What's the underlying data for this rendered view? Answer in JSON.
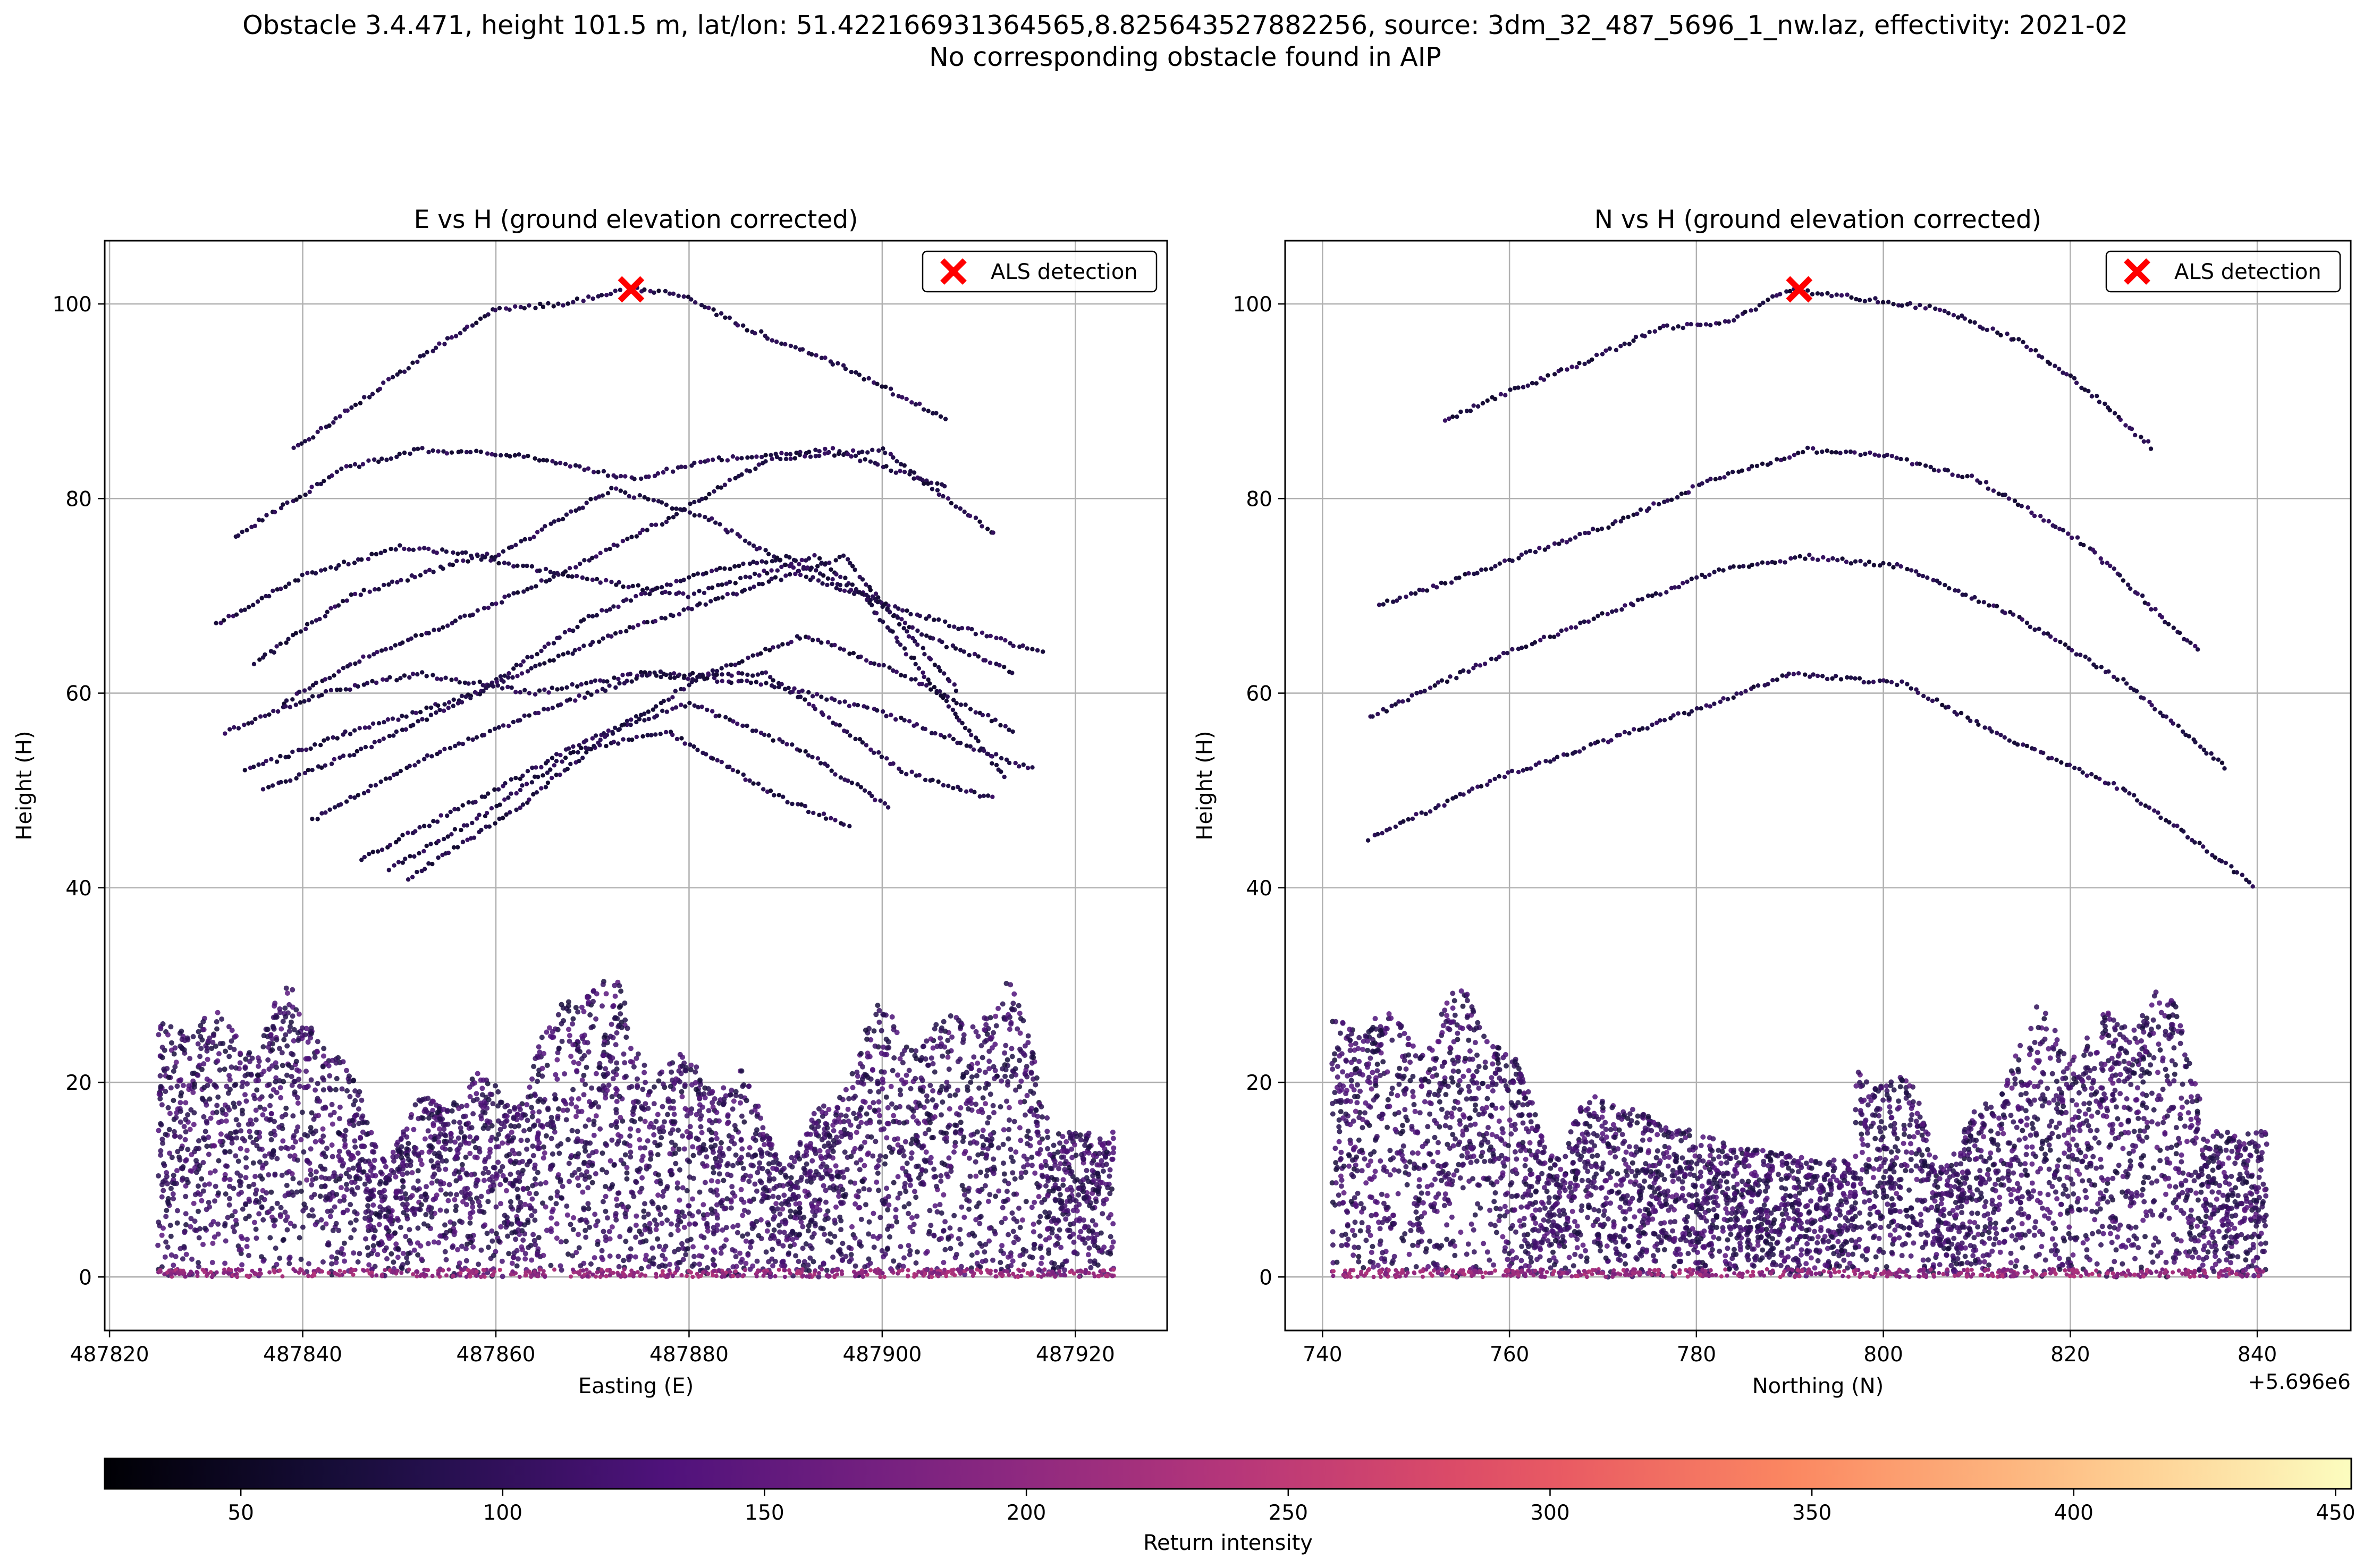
{
  "figure": {
    "title_line1": "Obstacle 3.4.471, height 101.5 m, lat/lon: 51.422166931364565,8.825643527882256, source: 3dm_32_487_5696_1_nw.laz, effectivity: 2021-02",
    "title_line2": "No corresponding obstacle found in AIP"
  },
  "chart_data": [
    {
      "type": "scatter",
      "title": "E vs H (ground elevation corrected)",
      "xlabel": "Easting (E)",
      "ylabel": "Height (H)",
      "xlim": [
        487819.5,
        487929.5
      ],
      "ylim": [
        -5.5,
        106.5
      ],
      "xticks": [
        487820,
        487840,
        487860,
        487880,
        487900,
        487920
      ],
      "xtick_labels": [
        "487820",
        "487840",
        "487860",
        "487880",
        "487900",
        "487920"
      ],
      "yticks": [
        0,
        20,
        40,
        60,
        80,
        100
      ],
      "ytick_labels": [
        "0",
        "20",
        "40",
        "60",
        "80",
        "100"
      ],
      "x_offset_label": "",
      "grid": true,
      "legend": {
        "position": "top-right",
        "label": "ALS detection"
      },
      "detection": {
        "x": 487874,
        "y": 101.5,
        "marker": "x",
        "color": "#ff0000"
      },
      "ground_band": {
        "x_range": [
          487825,
          487924
        ],
        "height_range": [
          0,
          32
        ]
      },
      "point_lines": [
        {
          "x": [
            487833,
            487844,
            487852,
            487862,
            487874,
            487883,
            487895,
            487907
          ],
          "y": [
            76,
            83,
            85,
            84.5,
            82,
            84,
            85,
            81
          ]
        },
        {
          "x": [
            487838,
            487845,
            487855,
            487866,
            487878,
            487888,
            487900,
            487912
          ],
          "y": [
            59,
            63,
            67,
            72,
            78,
            84,
            85,
            76
          ]
        },
        {
          "x": [
            487831,
            487840,
            487850,
            487860,
            487872,
            487882,
            487892,
            487904,
            487917
          ],
          "y": [
            67,
            72,
            75,
            74,
            81,
            78,
            72,
            68,
            64
          ]
        },
        {
          "x": [
            487835,
            487845,
            487858,
            487868,
            487880,
            487893,
            487904,
            487914
          ],
          "y": [
            63,
            70,
            74,
            72,
            70,
            74,
            66,
            62
          ]
        },
        {
          "x": [
            487832,
            487842,
            487852,
            487864,
            487875,
            487888,
            487900,
            487916
          ],
          "y": [
            56,
            60,
            62,
            60,
            62,
            61,
            58,
            52
          ]
        },
        {
          "x": [
            487834,
            487845,
            487858,
            487870,
            487880,
            487890,
            487898,
            487913
          ],
          "y": [
            52,
            56,
            60,
            68,
            72,
            74,
            70,
            51
          ]
        },
        {
          "x": [
            487836,
            487848,
            487860,
            487872,
            487884,
            487896,
            487908
          ],
          "y": [
            50,
            55,
            61,
            66,
            70,
            74,
            60
          ]
        },
        {
          "x": [
            487841,
            487852,
            487864,
            487876,
            487888,
            487902,
            487912
          ],
          "y": [
            47,
            53,
            58,
            62,
            62,
            52,
            49
          ]
        },
        {
          "x": [
            487846,
            487858,
            487869,
            487880,
            487892,
            487901
          ],
          "y": [
            43,
            49,
            55,
            59,
            54,
            48
          ]
        },
        {
          "x": [
            487849,
            487858,
            487868,
            487878,
            487888,
            487897
          ],
          "y": [
            42,
            47,
            54,
            56,
            50,
            46
          ]
        },
        {
          "x": [
            487851,
            487862,
            487872,
            487882,
            487892,
            487902,
            487914
          ],
          "y": [
            41,
            48,
            56,
            62,
            66,
            62,
            56
          ]
        },
        {
          "x": [
            487839,
            487846,
            487853,
            487860,
            487867,
            487874,
            487879,
            487886,
            487895,
            487907
          ],
          "y": [
            85,
            90,
            95,
            99.5,
            100,
            101.5,
            101,
            97.5,
            94,
            88
          ]
        }
      ]
    },
    {
      "type": "scatter",
      "title": "N vs H (ground elevation corrected)",
      "xlabel": "Northing (N)",
      "ylabel": "Height (H)",
      "xlim": [
        5696736,
        5696850
      ],
      "ylim": [
        -5.5,
        106.5
      ],
      "xticks": [
        5696740,
        5696760,
        5696780,
        5696800,
        5696820,
        5696840
      ],
      "xtick_labels": [
        "740",
        "760",
        "780",
        "800",
        "820",
        "840"
      ],
      "x_offset_label": "+5.696e6",
      "yticks": [
        0,
        20,
        40,
        60,
        80,
        100
      ],
      "ytick_labels": [
        "0",
        "20",
        "40",
        "60",
        "80",
        "100"
      ],
      "grid": true,
      "legend": {
        "position": "top-right",
        "label": "ALS detection"
      },
      "detection": {
        "x": 5696791,
        "y": 101.5,
        "marker": "x",
        "color": "#ff0000"
      },
      "ground_band": {
        "x_range": [
          5696741,
          5696841
        ],
        "height_range": [
          0,
          32
        ]
      },
      "point_lines": [
        {
          "x": [
            5696753,
            5696760,
            5696768,
            5696776,
            5696783,
            5696790,
            5696798,
            5696806,
            5696815,
            5696822,
            5696829
          ],
          "y": [
            88,
            91,
            94,
            97.5,
            98,
            101.5,
            100.5,
            99.5,
            96,
            91,
            85
          ]
        },
        {
          "x": [
            5696746,
            5696758,
            5696770,
            5696782,
            5696792,
            5696800,
            5696810,
            5696822,
            5696834
          ],
          "y": [
            69,
            73,
            77,
            82,
            85,
            84.5,
            82,
            75,
            64
          ]
        },
        {
          "x": [
            5696745,
            5696757,
            5696770,
            5696782,
            5696792,
            5696802,
            5696814,
            5696826,
            5696837
          ],
          "y": [
            57.5,
            63,
            68,
            72.5,
            74,
            73,
            68,
            61,
            52
          ]
        },
        {
          "x": [
            5696745,
            5696758,
            5696770,
            5696782,
            5696790,
            5696802,
            5696814,
            5696826,
            5696840
          ],
          "y": [
            45,
            51,
            55,
            59,
            62,
            61,
            55,
            50,
            40
          ]
        }
      ]
    }
  ],
  "colorbar": {
    "label": "Return intensity",
    "cmap": "magma",
    "range": [
      24,
      453
    ],
    "ticks": [
      50,
      100,
      150,
      200,
      250,
      300,
      350,
      400,
      450
    ],
    "tick_labels": [
      "50",
      "100",
      "150",
      "200",
      "250",
      "300",
      "350",
      "400",
      "450"
    ]
  }
}
